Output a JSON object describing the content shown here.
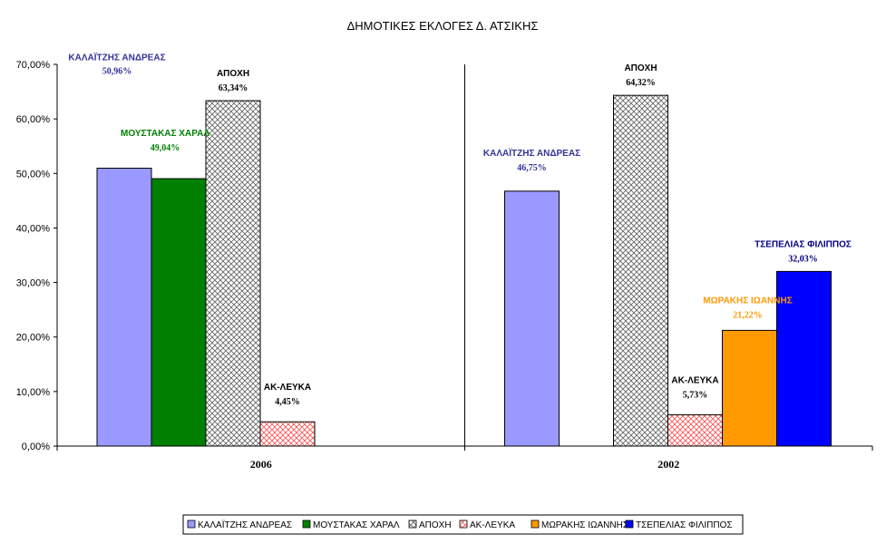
{
  "chart_data": {
    "type": "bar",
    "title": "ΔΗΜΟΤΙΚΕΣ ΕΚΛΟΓΕΣ Δ. ΑΤΣΙΚΗΣ",
    "xlabel": "",
    "ylabel": "",
    "ylim": [
      0,
      70
    ],
    "ytick_labels": [
      "0,00%",
      "10,00%",
      "20,00%",
      "30,00%",
      "40,00%",
      "50,00%",
      "60,00%",
      "70,00%"
    ],
    "categories": [
      "2006",
      "2002"
    ],
    "grid": false,
    "legend_position": "bottom",
    "series": [
      {
        "name": "ΚΑΛΑΪΤΖΗΣ ΑΝΔΡΕΑΣ",
        "values": [
          50.96,
          46.75
        ],
        "labels": [
          "50,96%",
          "46,75%"
        ],
        "color": "#9999ff",
        "pattern": "solid",
        "label_color": "#333399"
      },
      {
        "name": "ΜΟΥΣΤΑΚΑΣ ΧΑΡΑΛ",
        "values": [
          49.04,
          null
        ],
        "labels": [
          "49,04%",
          ""
        ],
        "color": "#008000",
        "pattern": "solid",
        "label_color": "#008000"
      },
      {
        "name": "ΑΠΟΧΗ",
        "values": [
          63.34,
          64.32
        ],
        "labels": [
          "63,34%",
          "64,32%"
        ],
        "color": "#808080",
        "pattern": "crosshatch",
        "label_color": "#000000"
      },
      {
        "name": "ΑΚ-ΛΕΥΚΑ",
        "values": [
          4.45,
          5.73
        ],
        "labels": [
          "4,45%",
          "5,73%"
        ],
        "color": "#ff6666",
        "pattern": "crosshatch-red",
        "label_color": "#000000"
      },
      {
        "name": "ΜΩΡΑΚΗΣ ΙΩΑΝΝΗΣ",
        "values": [
          null,
          21.22
        ],
        "labels": [
          "",
          "21,22%"
        ],
        "color": "#ff9900",
        "pattern": "solid",
        "label_color": "#ff9900"
      },
      {
        "name": "ΤΣΕΠΕΛΙΑΣ ΦΙΛΙΠΠΟΣ",
        "values": [
          null,
          32.03
        ],
        "labels": [
          "",
          "32,03%"
        ],
        "color": "#0000ff",
        "pattern": "solid",
        "label_color": "#000080"
      }
    ]
  }
}
